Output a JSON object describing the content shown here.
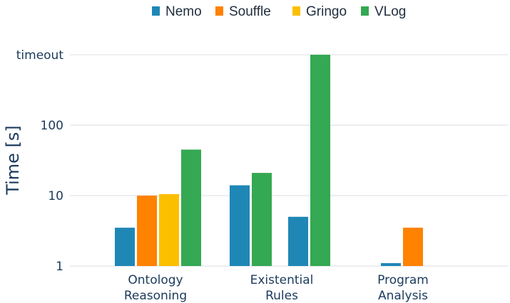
{
  "chart_data": {
    "type": "bar",
    "ylabel": "Time [s]",
    "yscale": "log",
    "ylim": [
      1,
      1000
    ],
    "yticks": [
      {
        "value": 1,
        "label": "1"
      },
      {
        "value": 10,
        "label": "10"
      },
      {
        "value": 100,
        "label": "100"
      },
      {
        "value": 1000,
        "label": "timeout"
      }
    ],
    "grid": true,
    "legend_position": "top-center",
    "series_meta": [
      {
        "name": "Nemo",
        "color": "#1f87b6"
      },
      {
        "name": "Souffle",
        "color": "#ff8200"
      },
      {
        "name": "Gringo",
        "color": "#fcbf00"
      },
      {
        "name": "VLog",
        "color": "#34a853"
      }
    ],
    "groups": [
      {
        "category": [
          "Ontology",
          "Reasoning"
        ],
        "bars": [
          {
            "series": "Nemo",
            "value": 3.5
          },
          {
            "series": "Souffle",
            "value": 10
          },
          {
            "series": "Gringo",
            "value": 10.5
          },
          {
            "series": "VLog",
            "value": 45
          }
        ]
      },
      {
        "category": [
          "Existential",
          "Rules"
        ],
        "bars": [
          {
            "series": "Nemo",
            "value": 14
          },
          {
            "series": "VLog",
            "value": 21
          },
          {
            "series": "Nemo",
            "value": 5
          },
          {
            "series": "VLog",
            "value": 1000
          }
        ]
      },
      {
        "category": [
          "Program",
          "Analysis"
        ],
        "bars": [
          {
            "series": "Nemo",
            "value": 1.1
          },
          {
            "series": "Souffle",
            "value": 3.5
          }
        ]
      }
    ]
  }
}
